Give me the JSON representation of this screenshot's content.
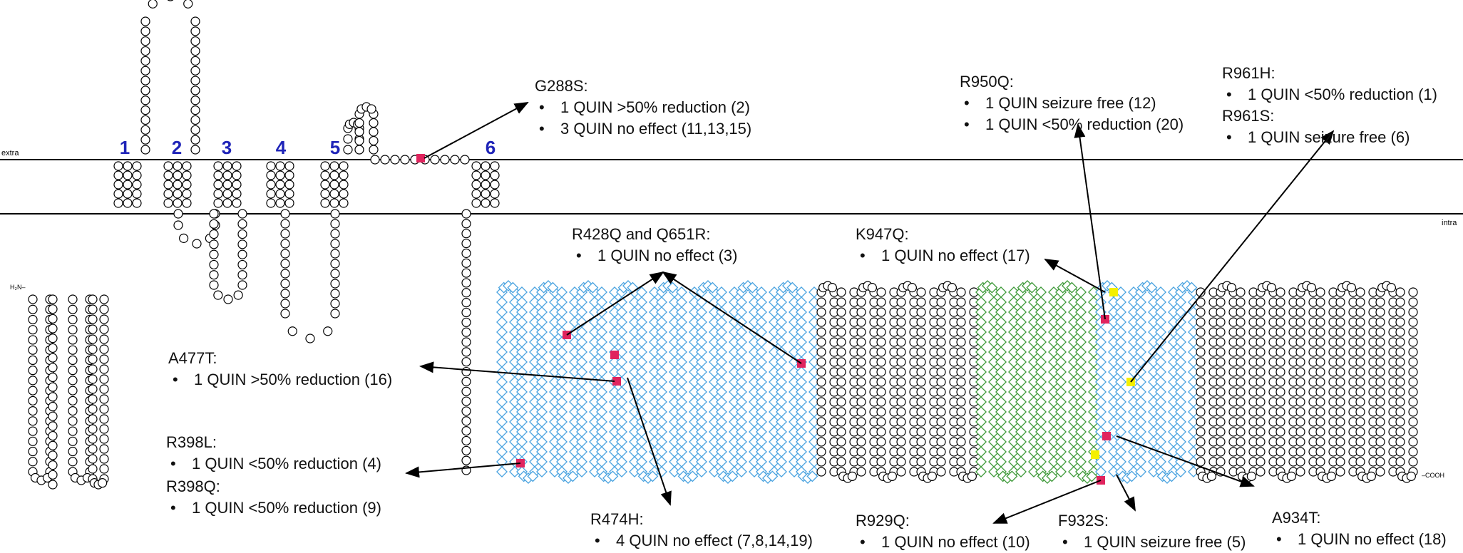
{
  "membrane": {
    "extra": "extra",
    "intra": "intra"
  },
  "termini": {
    "n": "H₂N–",
    "c": "–COOH"
  },
  "segments": [
    "1",
    "2",
    "3",
    "4",
    "5",
    "6"
  ],
  "annotations": [
    {
      "id": "g288s",
      "title": "G288S:",
      "items": [
        "1 QUIN >50% reduction (2)",
        "3 QUIN no effect (11,13,15)"
      ]
    },
    {
      "id": "r950q",
      "title": "R950Q:",
      "items": [
        "1 QUIN seizure free (12)",
        "1 QUIN <50% reduction (20)"
      ]
    },
    {
      "id": "r961h",
      "title": "R961H:",
      "items": [
        "1 QUIN <50% reduction (1)"
      ]
    },
    {
      "id": "r961s",
      "title": "R961S:",
      "items": [
        "1 QUIN seizure free (6)"
      ]
    },
    {
      "id": "r428q",
      "title": "R428Q and Q651R:",
      "items": [
        "1 QUIN no effect (3)"
      ]
    },
    {
      "id": "k947q",
      "title": "K947Q:",
      "items": [
        "1 QUIN no effect (17)"
      ]
    },
    {
      "id": "a477t",
      "title": "A477T:",
      "items": [
        "1 QUIN >50% reduction (16)"
      ]
    },
    {
      "id": "r398l",
      "title": "R398L:",
      "items": [
        "1 QUIN <50% reduction (4)"
      ]
    },
    {
      "id": "r398q",
      "title": "R398Q:",
      "items": [
        "1 QUIN <50% reduction (9)"
      ]
    },
    {
      "id": "r474h",
      "title": "R474H:",
      "items": [
        "4 QUIN no effect  (7,8,14,19)"
      ]
    },
    {
      "id": "r929q",
      "title": "R929Q:",
      "items": [
        "1 QUIN no effect (10)"
      ]
    },
    {
      "id": "f932s",
      "title": "F932S:",
      "items": [
        "1 QUIN seizure free (5)"
      ]
    },
    {
      "id": "a934t",
      "title": "A934T:",
      "items": [
        "1 QUIN no effect (18)"
      ]
    }
  ],
  "colors": {
    "membrane": "#000000",
    "segment_label": "#1f24b8",
    "residue": "#000000",
    "domain_blue": "#4aa3e0",
    "domain_green": "#3f9a3a",
    "mutation_red": "#e0245e",
    "mutation_yellow": "#f4f000"
  }
}
